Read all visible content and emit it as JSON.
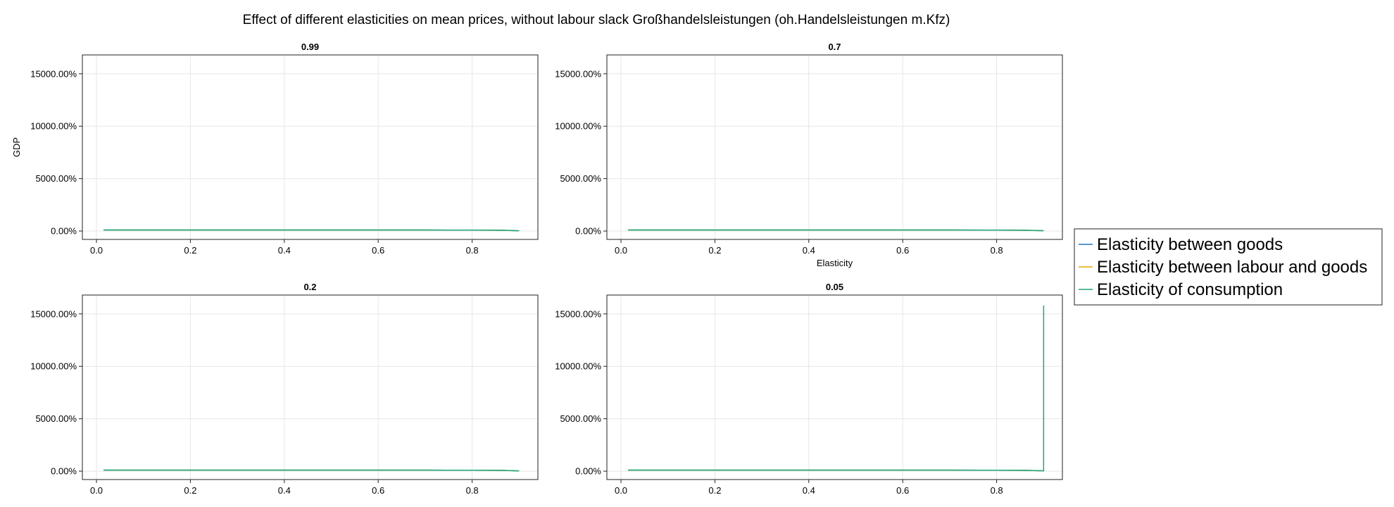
{
  "figure": {
    "title": "Effect of different elasticities on mean prices, without labour slack Großhandelsleistungen (oh.Handelsleistungen m.Kfz)"
  },
  "colors": {
    "Elasticity between goods": "#1f77c4",
    "Elasticity between labour and goods": "#e6a700",
    "Elasticity of consumption": "#1aa97a",
    "grid": "#e6e6e6",
    "axis": "#222222"
  },
  "legend": {
    "placement": "right",
    "items": [
      "Elasticity between goods",
      "Elasticity between labour and goods",
      "Elasticity of consumption"
    ]
  },
  "chart_data": [
    {
      "type": "line",
      "title": "0.99",
      "xlabel": "",
      "ylabel": "GDP",
      "xlim": [
        -0.03,
        0.94
      ],
      "ylim": [
        -800,
        16800
      ],
      "xticks": [
        "0.0",
        "0.2",
        "0.4",
        "0.6",
        "0.8"
      ],
      "xtick_values": [
        0.0,
        0.2,
        0.4,
        0.6,
        0.8
      ],
      "yticks": [
        "0.00%",
        "5000.00%",
        "10000.00%",
        "15000.00%"
      ],
      "ytick_values": [
        0,
        5000,
        10000,
        15000
      ],
      "grid": true,
      "x": [
        0.015,
        0.1,
        0.2,
        0.3,
        0.4,
        0.5,
        0.6,
        0.7,
        0.8,
        0.85,
        0.88,
        0.9
      ],
      "series": [
        {
          "name": "Elasticity between goods",
          "values": [
            100,
            100,
            100,
            99,
            99,
            98,
            97,
            95,
            90,
            80,
            60,
            20
          ]
        },
        {
          "name": "Elasticity between labour and goods",
          "values": [
            100,
            100,
            100,
            99,
            99,
            98,
            97,
            95,
            90,
            80,
            60,
            20
          ]
        },
        {
          "name": "Elasticity of consumption",
          "values": [
            100,
            100,
            100,
            99,
            99,
            98,
            97,
            95,
            90,
            80,
            60,
            20
          ]
        }
      ]
    },
    {
      "type": "line",
      "title": "0.7",
      "xlabel": "Elasticity",
      "ylabel": "",
      "xlim": [
        -0.03,
        0.94
      ],
      "ylim": [
        -800,
        16800
      ],
      "xticks": [
        "0.0",
        "0.2",
        "0.4",
        "0.6",
        "0.8"
      ],
      "xtick_values": [
        0.0,
        0.2,
        0.4,
        0.6,
        0.8
      ],
      "yticks": [
        "0.00%",
        "5000.00%",
        "10000.00%",
        "15000.00%"
      ],
      "ytick_values": [
        0,
        5000,
        10000,
        15000
      ],
      "grid": true,
      "x": [
        0.015,
        0.1,
        0.2,
        0.3,
        0.4,
        0.5,
        0.6,
        0.7,
        0.8,
        0.85,
        0.88,
        0.9
      ],
      "series": [
        {
          "name": "Elasticity between goods",
          "values": [
            100,
            100,
            100,
            99,
            99,
            98,
            97,
            95,
            90,
            80,
            60,
            30
          ]
        },
        {
          "name": "Elasticity between labour and goods",
          "values": [
            100,
            100,
            100,
            99,
            99,
            98,
            97,
            95,
            90,
            80,
            60,
            30
          ]
        },
        {
          "name": "Elasticity of consumption",
          "values": [
            100,
            100,
            100,
            99,
            99,
            98,
            97,
            95,
            90,
            80,
            60,
            30
          ]
        }
      ]
    },
    {
      "type": "line",
      "title": "0.2",
      "xlabel": "",
      "ylabel": "",
      "xlim": [
        -0.03,
        0.94
      ],
      "ylim": [
        -800,
        16800
      ],
      "xticks": [
        "0.0",
        "0.2",
        "0.4",
        "0.6",
        "0.8"
      ],
      "xtick_values": [
        0.0,
        0.2,
        0.4,
        0.6,
        0.8
      ],
      "yticks": [
        "0.00%",
        "5000.00%",
        "10000.00%",
        "15000.00%"
      ],
      "ytick_values": [
        0,
        5000,
        10000,
        15000
      ],
      "grid": true,
      "x": [
        0.015,
        0.1,
        0.2,
        0.3,
        0.4,
        0.5,
        0.6,
        0.7,
        0.8,
        0.85,
        0.88,
        0.9
      ],
      "series": [
        {
          "name": "Elasticity between goods",
          "values": [
            100,
            100,
            100,
            99,
            99,
            98,
            97,
            95,
            90,
            80,
            60,
            20
          ]
        },
        {
          "name": "Elasticity between labour and goods",
          "values": [
            100,
            100,
            100,
            99,
            99,
            98,
            97,
            95,
            90,
            80,
            60,
            20
          ]
        },
        {
          "name": "Elasticity of consumption",
          "values": [
            100,
            100,
            100,
            99,
            99,
            98,
            97,
            95,
            90,
            80,
            60,
            20
          ]
        }
      ]
    },
    {
      "type": "line",
      "title": "0.05",
      "xlabel": "",
      "ylabel": "",
      "xlim": [
        -0.03,
        0.94
      ],
      "ylim": [
        -800,
        16800
      ],
      "xticks": [
        "0.0",
        "0.2",
        "0.4",
        "0.6",
        "0.8"
      ],
      "xtick_values": [
        0.0,
        0.2,
        0.4,
        0.6,
        0.8
      ],
      "yticks": [
        "0.00%",
        "5000.00%",
        "10000.00%",
        "15000.00%"
      ],
      "ytick_values": [
        0,
        5000,
        10000,
        15000
      ],
      "grid": true,
      "x": [
        0.015,
        0.1,
        0.2,
        0.3,
        0.4,
        0.5,
        0.6,
        0.7,
        0.8,
        0.85,
        0.88,
        0.9,
        0.9001
      ],
      "series": [
        {
          "name": "Elasticity between goods",
          "values": [
            100,
            100,
            100,
            99,
            99,
            98,
            97,
            95,
            90,
            80,
            60,
            30,
            30
          ]
        },
        {
          "name": "Elasticity between labour and goods",
          "values": [
            100,
            100,
            100,
            99,
            99,
            98,
            97,
            95,
            90,
            80,
            60,
            30,
            30
          ]
        },
        {
          "name": "Elasticity of consumption",
          "values": [
            100,
            100,
            100,
            99,
            99,
            98,
            97,
            95,
            90,
            80,
            60,
            30,
            15800
          ]
        }
      ]
    }
  ]
}
